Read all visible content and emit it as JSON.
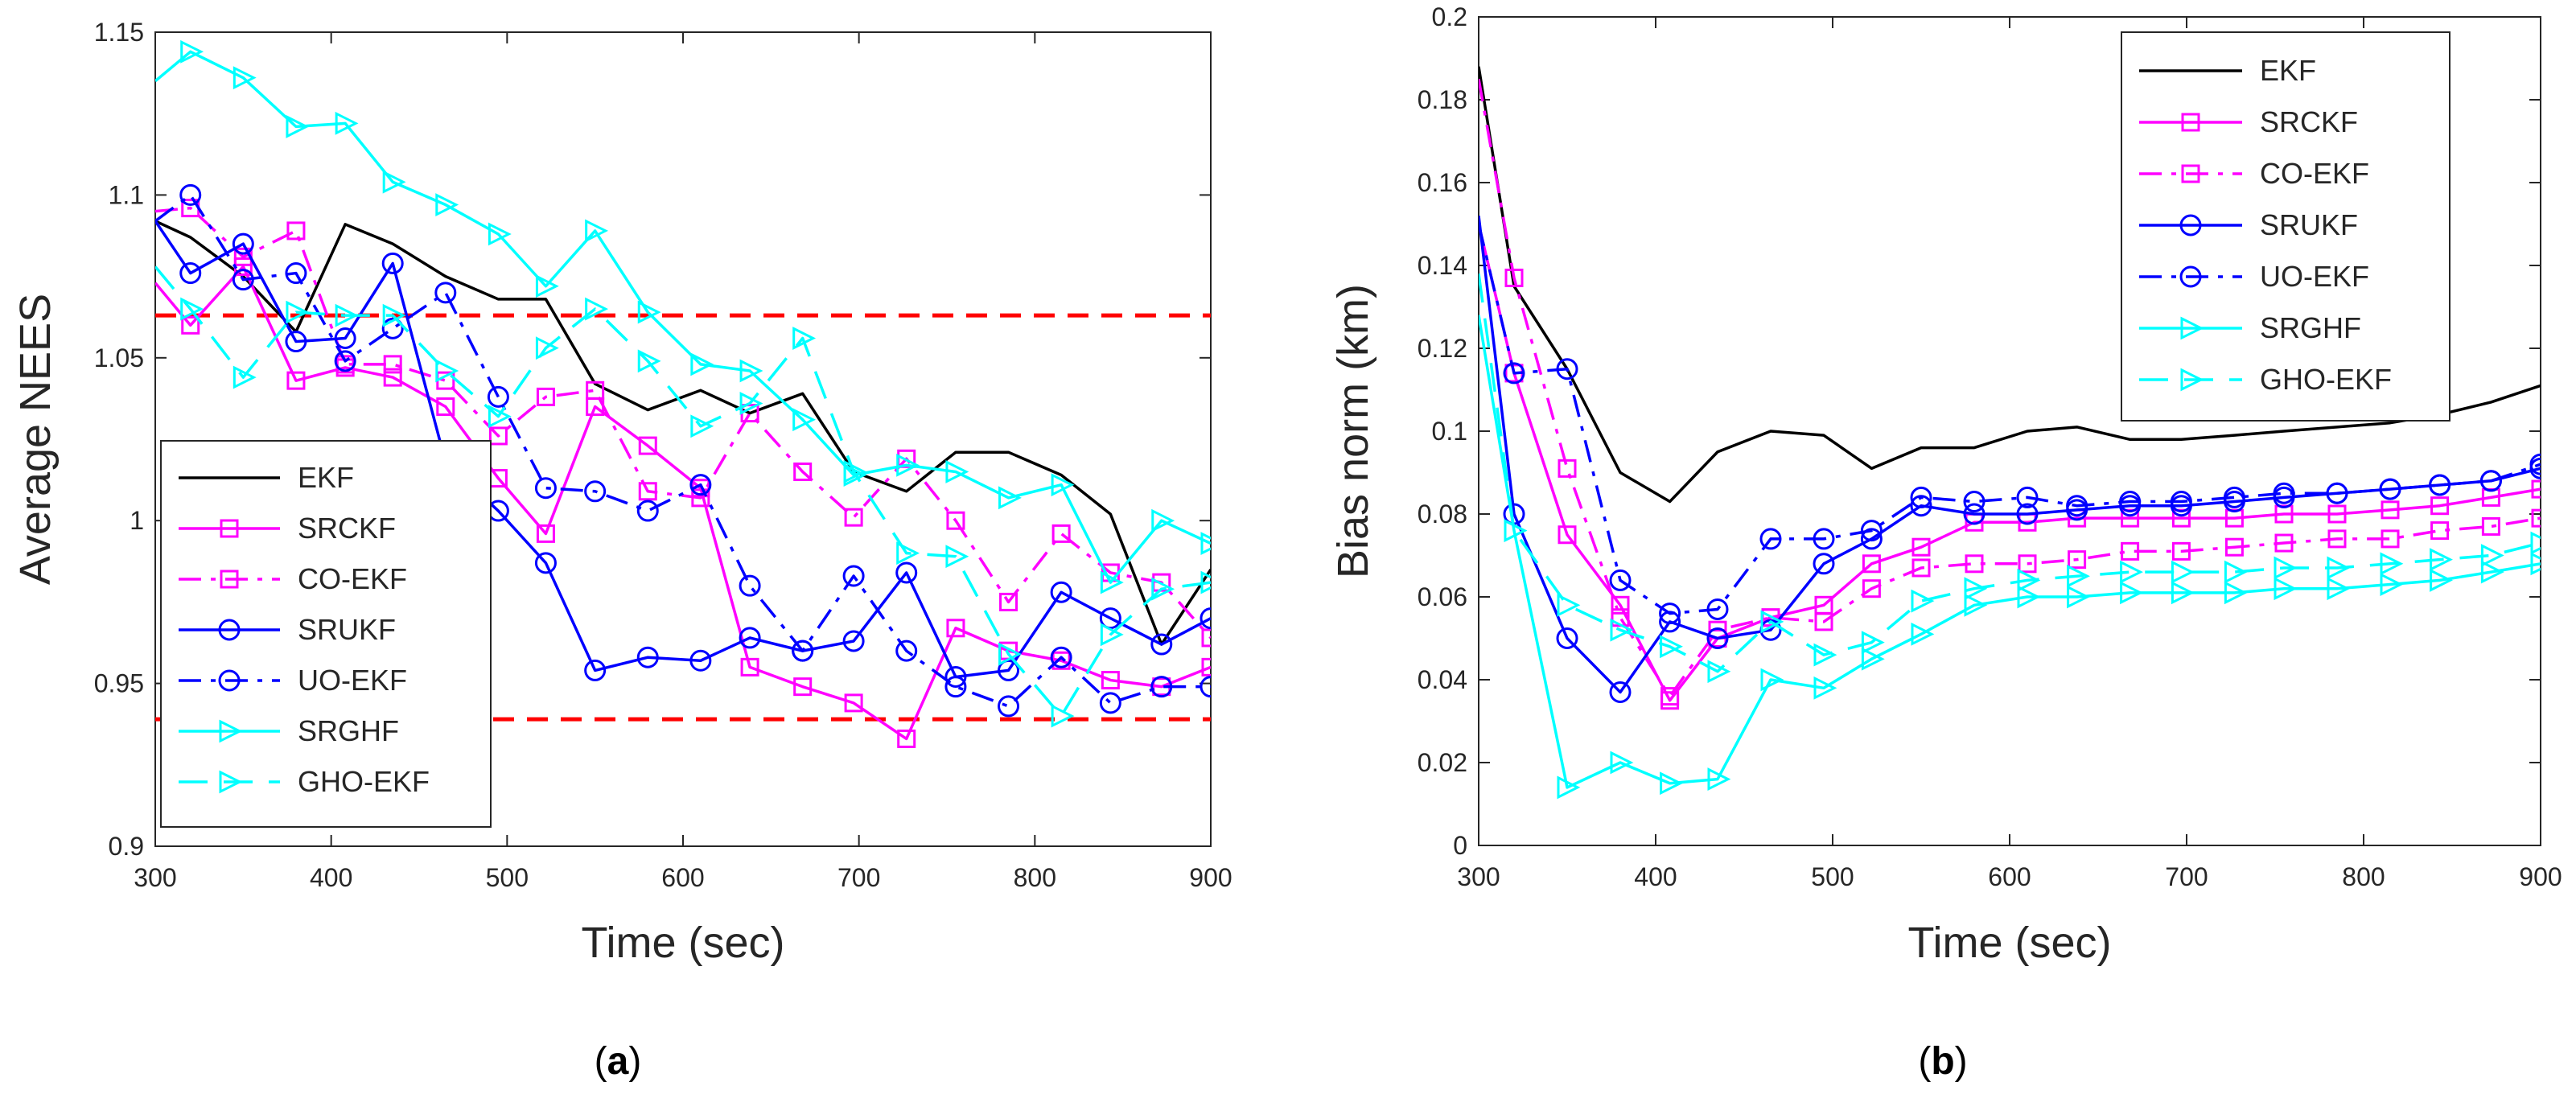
{
  "figure": {
    "panels": [
      {
        "caption_letter": "a"
      },
      {
        "caption_letter": "b"
      }
    ]
  },
  "chart_data": [
    {
      "type": "line",
      "xlabel": "Time (sec)",
      "ylabel": "Average NEES",
      "xlim": [
        300,
        900
      ],
      "ylim": [
        0.9,
        1.15
      ],
      "xticks": [
        300,
        400,
        500,
        600,
        700,
        800,
        900
      ],
      "yticks": [
        0.9,
        0.95,
        1,
        1.05,
        1.1,
        1.15
      ],
      "ytick_labels": [
        "0.9",
        "0.95",
        "1",
        "1.05",
        "1.1",
        "1.15"
      ],
      "grid": false,
      "legend_position": "bottom-left",
      "reference_lines": [
        {
          "name": "upper-bound",
          "y": 1.063,
          "color": "#ff0000"
        },
        {
          "name": "lower-bound",
          "y": 0.939,
          "color": "#ff0000"
        }
      ],
      "series": [
        {
          "name": "EKF",
          "color": "#000000",
          "dash": "solid",
          "marker": "none",
          "x": [
            300,
            320,
            350,
            380,
            408,
            435,
            465,
            495,
            522,
            550,
            580,
            610,
            638,
            668,
            697,
            727,
            755,
            785,
            815,
            843,
            872,
            900
          ],
          "y": [
            1.092,
            1.087,
            1.075,
            1.058,
            1.091,
            1.085,
            1.075,
            1.068,
            1.068,
            1.042,
            1.034,
            1.04,
            1.033,
            1.039,
            1.015,
            1.009,
            1.021,
            1.021,
            1.014,
            1.002,
            0.962,
            0.985
          ]
        },
        {
          "name": "SRCKF",
          "color": "#ff00ff",
          "dash": "solid",
          "marker": "square",
          "x": [
            300,
            320,
            350,
            380,
            408,
            435,
            465,
            495,
            522,
            550,
            580,
            610,
            638,
            668,
            697,
            727,
            755,
            785,
            815,
            843,
            872,
            900
          ],
          "y": [
            1.073,
            1.06,
            1.078,
            1.043,
            1.047,
            1.044,
            1.035,
            1.013,
            0.996,
            1.035,
            1.023,
            1.01,
            0.955,
            0.949,
            0.944,
            0.933,
            0.967,
            0.96,
            0.957,
            0.951,
            0.949,
            0.955
          ]
        },
        {
          "name": "CO-EKF",
          "color": "#ff00ff",
          "dash": "dashdot",
          "marker": "square",
          "x": [
            300,
            320,
            350,
            380,
            408,
            435,
            465,
            495,
            522,
            550,
            580,
            610,
            638,
            668,
            697,
            727,
            755,
            785,
            815,
            843,
            872,
            900
          ],
          "y": [
            1.095,
            1.096,
            1.081,
            1.089,
            1.048,
            1.048,
            1.043,
            1.026,
            1.038,
            1.04,
            1.009,
            1.007,
            1.033,
            1.015,
            1.001,
            1.019,
            1.0,
            0.975,
            0.996,
            0.984,
            0.981,
            0.964
          ]
        },
        {
          "name": "SRUKF",
          "color": "#0000ff",
          "dash": "solid",
          "marker": "circle",
          "x": [
            300,
            320,
            350,
            380,
            408,
            435,
            465,
            495,
            522,
            550,
            580,
            610,
            638,
            668,
            697,
            727,
            755,
            785,
            815,
            843,
            872,
            900
          ],
          "y": [
            1.092,
            1.076,
            1.085,
            1.055,
            1.056,
            1.079,
            1.018,
            1.003,
            0.987,
            0.954,
            0.958,
            0.957,
            0.964,
            0.96,
            0.963,
            0.984,
            0.952,
            0.954,
            0.978,
            0.97,
            0.962,
            0.97
          ]
        },
        {
          "name": "UO-EKF",
          "color": "#0000ff",
          "dash": "dashdot",
          "marker": "circle",
          "x": [
            300,
            320,
            350,
            380,
            408,
            435,
            465,
            495,
            522,
            550,
            580,
            610,
            638,
            668,
            697,
            727,
            755,
            785,
            815,
            843,
            872,
            900
          ],
          "y": [
            1.092,
            1.1,
            1.074,
            1.076,
            1.049,
            1.059,
            1.07,
            1.038,
            1.01,
            1.009,
            1.003,
            1.011,
            0.98,
            0.96,
            0.983,
            0.96,
            0.949,
            0.943,
            0.958,
            0.944,
            0.949,
            0.949
          ]
        },
        {
          "name": "SRGHF",
          "color": "#00ffff",
          "dash": "solid",
          "marker": "triangle-right",
          "x": [
            300,
            320,
            350,
            380,
            408,
            435,
            465,
            495,
            522,
            550,
            580,
            610,
            638,
            668,
            697,
            727,
            755,
            785,
            815,
            843,
            872,
            900
          ],
          "y": [
            1.135,
            1.144,
            1.136,
            1.121,
            1.122,
            1.104,
            1.097,
            1.088,
            1.072,
            1.089,
            1.064,
            1.048,
            1.046,
            1.031,
            1.014,
            1.017,
            1.015,
            1.007,
            1.011,
            0.981,
            1.0,
            0.993
          ]
        },
        {
          "name": "GHO-EKF",
          "color": "#00ffff",
          "dash": "dashed",
          "marker": "triangle-right",
          "x": [
            300,
            320,
            350,
            380,
            408,
            435,
            465,
            495,
            522,
            550,
            580,
            610,
            638,
            668,
            697,
            727,
            755,
            785,
            815,
            843,
            872,
            900
          ],
          "y": [
            1.078,
            1.065,
            1.044,
            1.064,
            1.063,
            1.063,
            1.046,
            1.032,
            1.053,
            1.065,
            1.049,
            1.029,
            1.036,
            1.056,
            1.015,
            0.99,
            0.989,
            0.959,
            0.94,
            0.965,
            0.979,
            0.981
          ]
        }
      ]
    },
    {
      "type": "line",
      "xlabel": "Time (sec)",
      "ylabel": "Bias norm (km)",
      "xlim": [
        300,
        900
      ],
      "ylim": [
        0,
        0.2
      ],
      "xticks": [
        300,
        400,
        500,
        600,
        700,
        800,
        900
      ],
      "yticks": [
        0,
        0.02,
        0.04,
        0.06,
        0.08,
        0.1,
        0.12,
        0.14,
        0.16,
        0.18,
        0.2
      ],
      "ytick_labels": [
        "0",
        "0.02",
        "0.04",
        "0.06",
        "0.08",
        "0.1",
        "0.12",
        "0.14",
        "0.16",
        "0.18",
        "0.2"
      ],
      "grid": false,
      "legend_position": "top-right",
      "reference_lines": [],
      "series": [
        {
          "name": "EKF",
          "color": "#000000",
          "dash": "solid",
          "marker": "none",
          "x": [
            300,
            320,
            350,
            380,
            408,
            435,
            465,
            495,
            522,
            550,
            580,
            610,
            638,
            668,
            697,
            727,
            755,
            785,
            815,
            843,
            872,
            900
          ],
          "y": [
            0.188,
            0.135,
            0.115,
            0.09,
            0.083,
            0.095,
            0.1,
            0.099,
            0.091,
            0.096,
            0.096,
            0.1,
            0.101,
            0.098,
            0.098,
            0.099,
            0.1,
            0.101,
            0.102,
            0.104,
            0.107,
            0.111
          ]
        },
        {
          "name": "SRCKF",
          "color": "#ff00ff",
          "dash": "solid",
          "marker": "square",
          "x": [
            300,
            320,
            350,
            380,
            408,
            435,
            465,
            495,
            522,
            550,
            580,
            610,
            638,
            668,
            697,
            727,
            755,
            785,
            815,
            843,
            872,
            900
          ],
          "y": [
            0.15,
            0.114,
            0.075,
            0.058,
            0.035,
            0.05,
            0.055,
            0.058,
            0.068,
            0.072,
            0.078,
            0.078,
            0.079,
            0.079,
            0.079,
            0.079,
            0.08,
            0.08,
            0.081,
            0.082,
            0.084,
            0.086
          ]
        },
        {
          "name": "CO-EKF",
          "color": "#ff00ff",
          "dash": "dashdot",
          "marker": "square",
          "x": [
            300,
            320,
            350,
            380,
            408,
            435,
            465,
            495,
            522,
            550,
            580,
            610,
            638,
            668,
            697,
            727,
            755,
            785,
            815,
            843,
            872,
            900
          ],
          "y": [
            0.185,
            0.137,
            0.091,
            0.055,
            0.036,
            0.052,
            0.055,
            0.054,
            0.062,
            0.067,
            0.068,
            0.068,
            0.069,
            0.071,
            0.071,
            0.072,
            0.073,
            0.074,
            0.074,
            0.076,
            0.077,
            0.079
          ]
        },
        {
          "name": "SRUKF",
          "color": "#0000ff",
          "dash": "solid",
          "marker": "circle",
          "x": [
            300,
            320,
            350,
            380,
            408,
            435,
            465,
            495,
            522,
            550,
            580,
            610,
            638,
            668,
            697,
            727,
            755,
            785,
            815,
            843,
            872,
            900
          ],
          "y": [
            0.152,
            0.08,
            0.05,
            0.037,
            0.054,
            0.05,
            0.052,
            0.068,
            0.074,
            0.082,
            0.08,
            0.08,
            0.081,
            0.082,
            0.082,
            0.083,
            0.084,
            0.085,
            0.086,
            0.087,
            0.088,
            0.091
          ]
        },
        {
          "name": "UO-EKF",
          "color": "#0000ff",
          "dash": "dashdot",
          "marker": "circle",
          "x": [
            300,
            320,
            350,
            380,
            408,
            435,
            465,
            495,
            522,
            550,
            580,
            610,
            638,
            668,
            697,
            727,
            755,
            785,
            815,
            843,
            872,
            900
          ],
          "y": [
            0.15,
            0.114,
            0.115,
            0.064,
            0.056,
            0.057,
            0.074,
            0.074,
            0.076,
            0.084,
            0.083,
            0.084,
            0.082,
            0.083,
            0.083,
            0.084,
            0.085,
            0.085,
            0.086,
            0.087,
            0.088,
            0.092
          ]
        },
        {
          "name": "SRGHF",
          "color": "#00ffff",
          "dash": "solid",
          "marker": "triangle-right",
          "x": [
            300,
            320,
            350,
            380,
            408,
            435,
            465,
            495,
            522,
            550,
            580,
            610,
            638,
            668,
            697,
            727,
            755,
            785,
            815,
            843,
            872,
            900
          ],
          "y": [
            0.128,
            0.076,
            0.014,
            0.02,
            0.015,
            0.016,
            0.04,
            0.038,
            0.045,
            0.051,
            0.058,
            0.06,
            0.06,
            0.061,
            0.061,
            0.061,
            0.062,
            0.062,
            0.063,
            0.064,
            0.066,
            0.068
          ]
        },
        {
          "name": "GHO-EKF",
          "color": "#00ffff",
          "dash": "dashed",
          "marker": "triangle-right",
          "x": [
            300,
            320,
            350,
            380,
            408,
            435,
            465,
            495,
            522,
            550,
            580,
            610,
            638,
            668,
            697,
            727,
            755,
            785,
            815,
            843,
            872,
            900
          ],
          "y": [
            0.138,
            0.076,
            0.058,
            0.052,
            0.048,
            0.042,
            0.054,
            0.046,
            0.049,
            0.059,
            0.062,
            0.064,
            0.065,
            0.066,
            0.066,
            0.066,
            0.067,
            0.067,
            0.068,
            0.069,
            0.07,
            0.073
          ]
        }
      ]
    }
  ]
}
